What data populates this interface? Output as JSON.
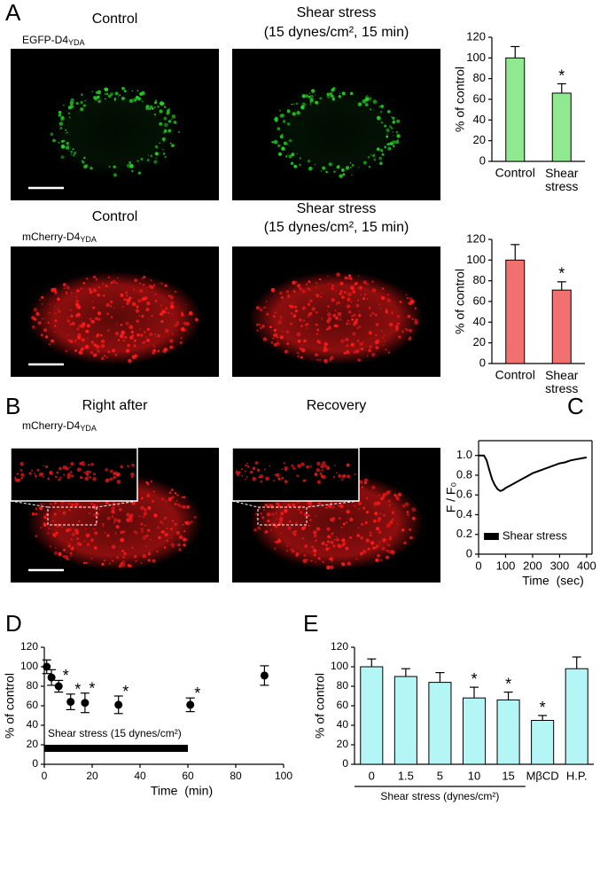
{
  "panel_labels": [
    "A",
    "B",
    "C",
    "D",
    "E"
  ],
  "images": [
    {
      "title": [
        "Control"
      ],
      "label": {
        "main": "EGFP-D4",
        "sub": "YDA"
      },
      "color": "#22d022"
    },
    {
      "title": [
        "Shear stress",
        "(15 dynes/cm², 15 min)"
      ],
      "color": "#22d022"
    },
    {
      "title": [
        "Control"
      ],
      "label": {
        "main": "mCherry-D4",
        "sub": "YDA"
      },
      "color": "#ff1a1a"
    },
    {
      "title": [
        "Shear stress",
        "(15 dynes/cm², 15 min)"
      ],
      "color": "#ff1a1a"
    },
    {
      "title": [
        "Right after"
      ],
      "label": {
        "main": "mCherry-D4",
        "sub": "YDA"
      },
      "color": "#ff1a1a"
    },
    {
      "title": [
        "Recovery"
      ],
      "color": "#ff1a1a"
    }
  ],
  "chart_data": [
    {
      "type": "bar",
      "categories": [
        "Control",
        "Shear stress"
      ],
      "values": [
        100,
        66
      ],
      "errors": [
        11,
        9
      ],
      "significance": [
        null,
        "*"
      ],
      "color": "#90e890",
      "ylabel": "% of control",
      "ylim": [
        0,
        120
      ],
      "yticks": [
        0,
        20,
        40,
        60,
        80,
        100,
        120
      ]
    },
    {
      "type": "bar",
      "categories": [
        "Control",
        "Shear stress"
      ],
      "values": [
        100,
        71
      ],
      "errors": [
        15,
        8
      ],
      "significance": [
        null,
        "*"
      ],
      "color": "#f27070",
      "ylabel": "% of control",
      "ylim": [
        0,
        120
      ],
      "yticks": [
        0,
        20,
        40,
        60,
        80,
        100,
        120
      ]
    },
    {
      "type": "line",
      "x": [
        0,
        10,
        20,
        30,
        40,
        50,
        60,
        70,
        80,
        90,
        100,
        120,
        140,
        160,
        180,
        200,
        220,
        240,
        260,
        280,
        300,
        320,
        340,
        360,
        380,
        400
      ],
      "values": [
        1.0,
        1.0,
        1.0,
        0.95,
        0.85,
        0.76,
        0.7,
        0.66,
        0.64,
        0.65,
        0.67,
        0.7,
        0.73,
        0.76,
        0.79,
        0.82,
        0.84,
        0.86,
        0.88,
        0.9,
        0.92,
        0.93,
        0.95,
        0.96,
        0.97,
        0.98
      ],
      "color": "#000000",
      "ylabel": "F / F₀",
      "xlabel": "Time  (sec)",
      "xlim": [
        0,
        420
      ],
      "xticks": [
        0,
        100,
        200,
        300,
        400
      ],
      "ylim": [
        0,
        1.15
      ],
      "yticks": [
        0,
        0.2,
        0.4,
        0.6,
        0.8,
        {
          "value": 1.0,
          "label": "1.0"
        }
      ],
      "stimulus": {
        "label": "Shear stress",
        "x": [
          20,
          75
        ]
      }
    },
    {
      "type": "scatter",
      "x": [
        1,
        3,
        6,
        11,
        17,
        31,
        61,
        92
      ],
      "values": [
        100,
        89,
        80,
        64,
        63,
        61,
        61,
        91
      ],
      "errors": [
        7,
        8,
        6,
        8,
        10,
        9,
        7,
        10
      ],
      "significance": [
        null,
        null,
        "*",
        "*",
        "*",
        "*",
        "*",
        null
      ],
      "color": "#000000",
      "ylabel": "% of control",
      "xlabel": "Time  (min)",
      "xlim": [
        0,
        100
      ],
      "xticks": [
        0,
        20,
        40,
        60,
        80,
        100
      ],
      "ylim": [
        0,
        120
      ],
      "yticks": [
        0,
        20,
        40,
        60,
        80,
        100,
        120
      ],
      "stimulus": {
        "label": "Shear stress (15 dynes/cm²)",
        "x": [
          0,
          60
        ]
      }
    },
    {
      "type": "bar",
      "categories": [
        "0",
        "1.5",
        "5",
        "10",
        "15",
        "MβCD",
        "H.P."
      ],
      "values": [
        100,
        90,
        84,
        68,
        66,
        45,
        98
      ],
      "errors": [
        8,
        8,
        10,
        11,
        8,
        5,
        12
      ],
      "significance": [
        null,
        null,
        null,
        "*",
        "*",
        "*",
        null
      ],
      "color": "#b4f6f6",
      "ylabel": "% of control",
      "xlabel": "Shear stress (dynes/cm²)",
      "ylim": [
        0,
        120
      ],
      "yticks": [
        0,
        20,
        40,
        60,
        80,
        100,
        120
      ]
    }
  ]
}
